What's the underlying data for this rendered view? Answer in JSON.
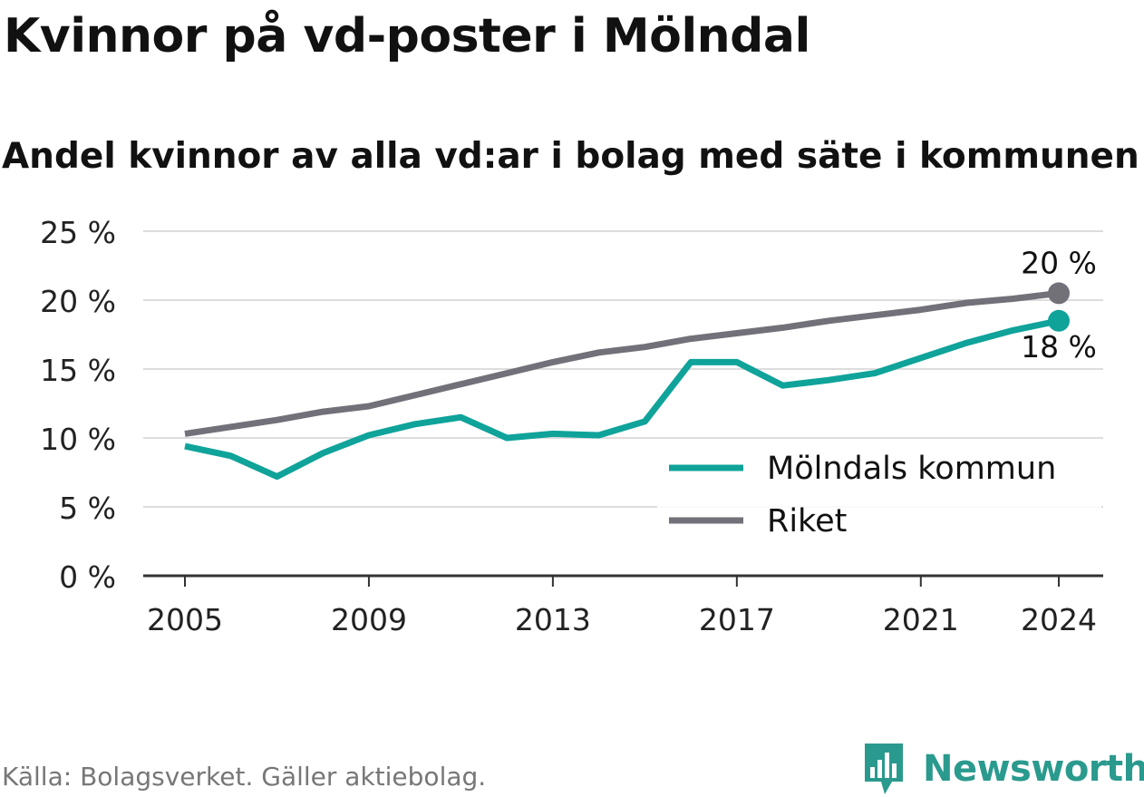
{
  "title": "Kvinnor på vd-poster i Mölndal",
  "subtitle": "Andel kvinnor av alla vd:ar i bolag med säte i kommunen",
  "source": "Källa: Bolagsverket. Gäller aktiebolag.",
  "brand": "Newsworthy",
  "colors": {
    "molndal": "#0fa39a",
    "riket": "#727179",
    "grid": "#dddddd",
    "axis": "#333333",
    "brand": "#2a9a8e"
  },
  "chart_data": {
    "type": "line",
    "x": [
      2005,
      2006,
      2007,
      2008,
      2009,
      2010,
      2011,
      2012,
      2013,
      2014,
      2015,
      2016,
      2017,
      2018,
      2019,
      2020,
      2021,
      2022,
      2023,
      2024
    ],
    "series": [
      {
        "name": "Mölndals kommun",
        "color": "#0fa39a",
        "values": [
          9.4,
          8.7,
          7.2,
          8.9,
          10.2,
          11.0,
          11.5,
          10.0,
          10.3,
          10.2,
          11.2,
          15.5,
          15.5,
          13.8,
          14.2,
          14.7,
          15.8,
          16.9,
          17.8,
          18.5
        ],
        "end_label": "18 %"
      },
      {
        "name": "Riket",
        "color": "#727179",
        "values": [
          10.3,
          10.8,
          11.3,
          11.9,
          12.3,
          13.1,
          13.9,
          14.7,
          15.5,
          16.2,
          16.6,
          17.2,
          17.6,
          18.0,
          18.5,
          18.9,
          19.3,
          19.8,
          20.1,
          20.5
        ],
        "end_label": "20 %"
      }
    ],
    "ylim": [
      0,
      25
    ],
    "yticks": [
      0,
      5,
      10,
      15,
      20,
      25
    ],
    "ytick_labels": [
      "0 %",
      "5 %",
      "10 %",
      "15 %",
      "20 %",
      "25 %"
    ],
    "xticks": [
      2005,
      2009,
      2013,
      2017,
      2021,
      2024
    ],
    "xtick_labels": [
      "2005",
      "2009",
      "2013",
      "2017",
      "2021",
      "2024"
    ],
    "grid": true,
    "legend": "bottom-right",
    "xlabel": "",
    "ylabel": ""
  }
}
